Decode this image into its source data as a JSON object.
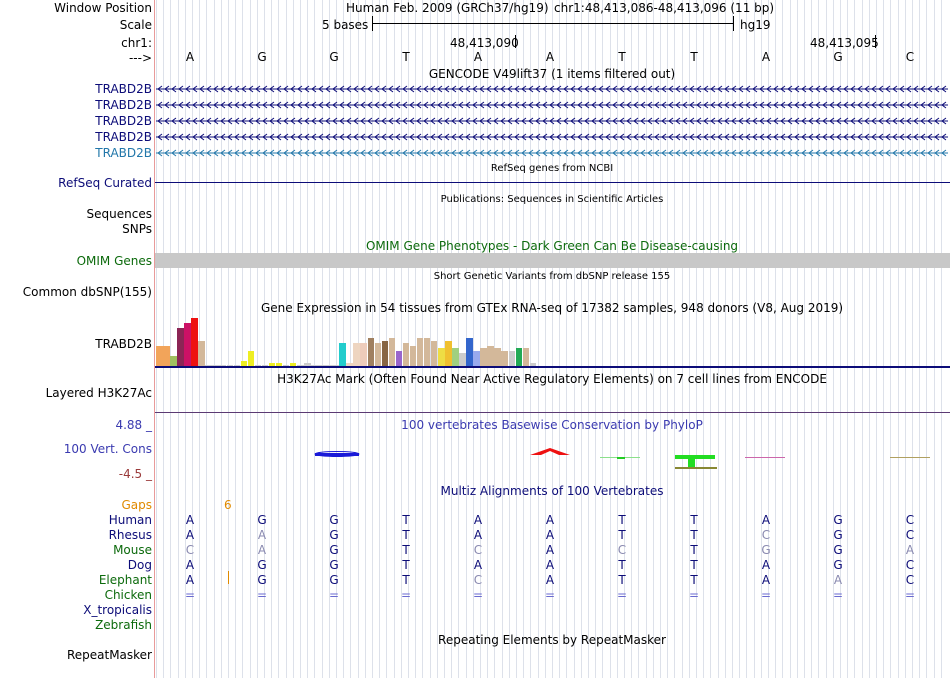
{
  "header": {
    "window_position_label": "Window Position",
    "scale_label": "Scale",
    "chr_label": "chr1:",
    "strand_label": "--->",
    "assembly": "Human Feb. 2009 (GRCh37/hg19)",
    "position": "chr1:48,413,086-48,413,096 (11 bp)",
    "scale_text": "5 bases",
    "scale_db": "hg19",
    "pos_a": "48,413,090",
    "pos_b": "48,413,095"
  },
  "sequence": [
    "A",
    "G",
    "G",
    "T",
    "A",
    "A",
    "T",
    "T",
    "A",
    "G",
    "C"
  ],
  "gencode": {
    "title": "GENCODE V49lift37 (1 items filtered out)",
    "genes": [
      "TRABD2B",
      "TRABD2B",
      "TRABD2B",
      "TRABD2B",
      "TRABD2B"
    ],
    "colors": [
      "#0c0c78",
      "#0c0c78",
      "#0c0c78",
      "#0c0c78",
      "#2277aa"
    ]
  },
  "refseq": {
    "title": "RefSeq genes from NCBI",
    "label": "RefSeq Curated"
  },
  "publications": {
    "title": "Publications: Sequences in Scientific Articles"
  },
  "seq_labels": {
    "sequences": "Sequences",
    "snps": "SNPs"
  },
  "omim": {
    "title": "OMIM Gene Phenotypes - Dark Green Can Be Disease-causing",
    "label": "OMIM Genes"
  },
  "dbsnp": {
    "title": "Short Genetic Variants from dbSNP release 155",
    "label": "Common dbSNP(155)"
  },
  "gtex": {
    "title": "Gene Expression in 54 tissues from GTEx RNA-seq of 17382 samples, 948 donors (V8, Aug 2019)",
    "label": "TRABD2B",
    "values": [
      0.4,
      0.4,
      0.2,
      0.75,
      0.85,
      0.95,
      0.5,
      0,
      0,
      0,
      0,
      0,
      0.1,
      0.3,
      0,
      0,
      0.05,
      0.05,
      0,
      0.05,
      0,
      0.05,
      0,
      0,
      0,
      0,
      0.45,
      0.05,
      0.45,
      0.45,
      0.55,
      0.45,
      0.5,
      0.55,
      0.3,
      0.45,
      0.4,
      0.55,
      0.55,
      0.5,
      0.35,
      0.5,
      0.35,
      0.25,
      0.55,
      0.3,
      0.35,
      0.4,
      0.35,
      0.3,
      0.3,
      0.35,
      0.35,
      0.05
    ],
    "colors": [
      "#f2a45a",
      "#f2a45a",
      "#a0c060",
      "#8b2555",
      "#cc1166",
      "#ee1111",
      "#d3b89a",
      "#cccccc",
      "#cccccc",
      "#cccccc",
      "#cccccc",
      "#cccccc",
      "#eeee22",
      "#eeee22",
      "#cccccc",
      "#cccccc",
      "#eeee22",
      "#eeee22",
      "#cccccc",
      "#eeee22",
      "#cccccc",
      "#cccccc",
      "#cccccc",
      "#cccccc",
      "#cccccc",
      "#cccccc",
      "#22cccc",
      "#eed5c0",
      "#eed5c0",
      "#eeccbb",
      "#a08060",
      "#d3b89a",
      "#886644",
      "#d3b89a",
      "#9966cc",
      "#d3b89a",
      "#d3b89a",
      "#d3b89a",
      "#d3b89a",
      "#d3b89a",
      "#eedd44",
      "#f0c030",
      "#a0d080",
      "#cccccc",
      "#3366cc",
      "#99aaee",
      "#d3b89a",
      "#d3b89a",
      "#d3b89a",
      "#d3b89a",
      "#cccccc",
      "#22aa55",
      "#d3b89a",
      "#cccccc"
    ]
  },
  "h3k27ac": {
    "title": "H3K27Ac Mark (Often Found Near Active Regulatory Elements) on 7 cell lines from ENCODE",
    "label": "Layered H3K27Ac"
  },
  "phylop": {
    "title": "100 vertebrates Basewise Conservation by PhyloP",
    "label": "100 Vert. Cons",
    "max": "4.88 _",
    "min": "-4.5 _"
  },
  "multiz": {
    "title": "Multiz Alignments of 100 Vertebrates",
    "gaps_label": "Gaps",
    "gaps_value": "6",
    "species": [
      {
        "name": "Human",
        "seq": [
          "A",
          "G",
          "G",
          "T",
          "A",
          "A",
          "T",
          "T",
          "A",
          "G",
          "C"
        ],
        "color": "#0c0c78"
      },
      {
        "name": "Rhesus",
        "seq": [
          "A",
          "A",
          "G",
          "T",
          "A",
          "A",
          "T",
          "T",
          "C",
          "G",
          "C"
        ],
        "color": "#0c0c78"
      },
      {
        "name": "Mouse",
        "seq": [
          "C",
          "A",
          "G",
          "T",
          "C",
          "A",
          "C",
          "T",
          "G",
          "G",
          "A"
        ],
        "color": "#0c6a0c"
      },
      {
        "name": "Dog",
        "seq": [
          "A",
          "G",
          "G",
          "T",
          "A",
          "A",
          "T",
          "T",
          "A",
          "G",
          "C"
        ],
        "color": "#0c0c78"
      },
      {
        "name": "Elephant",
        "seq": [
          "A",
          "G",
          "G",
          "T",
          "C",
          "A",
          "T",
          "T",
          "A",
          "A",
          "C"
        ],
        "color": "#0c6a0c"
      },
      {
        "name": "Chicken",
        "seq": [
          "=",
          "=",
          "=",
          "=",
          "=",
          "=",
          "=",
          "=",
          "=",
          "=",
          "="
        ],
        "color": "#0c6a0c"
      },
      {
        "name": "X_tropicalis",
        "seq": [],
        "color": "#0c0c78"
      },
      {
        "name": "Zebrafish",
        "seq": [],
        "color": "#0c6a0c"
      }
    ]
  },
  "repeatmasker": {
    "title": "Repeating Elements by RepeatMasker",
    "label": "RepeatMasker"
  }
}
